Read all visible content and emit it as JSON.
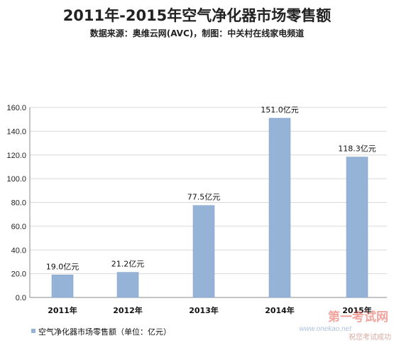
{
  "chart_data": {
    "type": "bar",
    "title": "2011年-2015年空气净化器市场零售额",
    "subtitle": "数据来源：奥维云网(AVC)，制图：中关村在线家电频道",
    "categories": [
      "2011年",
      "2012年",
      "2013年",
      "2014年",
      "2015年"
    ],
    "series": [
      {
        "name": "空气净化器市场零售额（单位：亿元）",
        "values": [
          19.0,
          21.2,
          77.5,
          151.0,
          118.3
        ],
        "labels": [
          "19.0亿元",
          "21.2亿元",
          "77.5亿元",
          "151.0亿元",
          "118.3亿元"
        ]
      }
    ],
    "ylim": [
      0,
      160
    ],
    "yticks": [
      "0.0",
      "20.0",
      "40.0",
      "60.0",
      "80.0",
      "100.0",
      "120.0",
      "140.0",
      "160.0"
    ],
    "grid": true,
    "legend": "bottom-left",
    "colors": {
      "bar": "#95b3d7",
      "bar_edge": "#7f9fc8",
      "grid": "#d9d9d9",
      "axis": "#888888"
    }
  },
  "watermark": {
    "text": "第一考试网",
    "url": "www.onekao.net",
    "slogan": "祝您考试成功"
  }
}
